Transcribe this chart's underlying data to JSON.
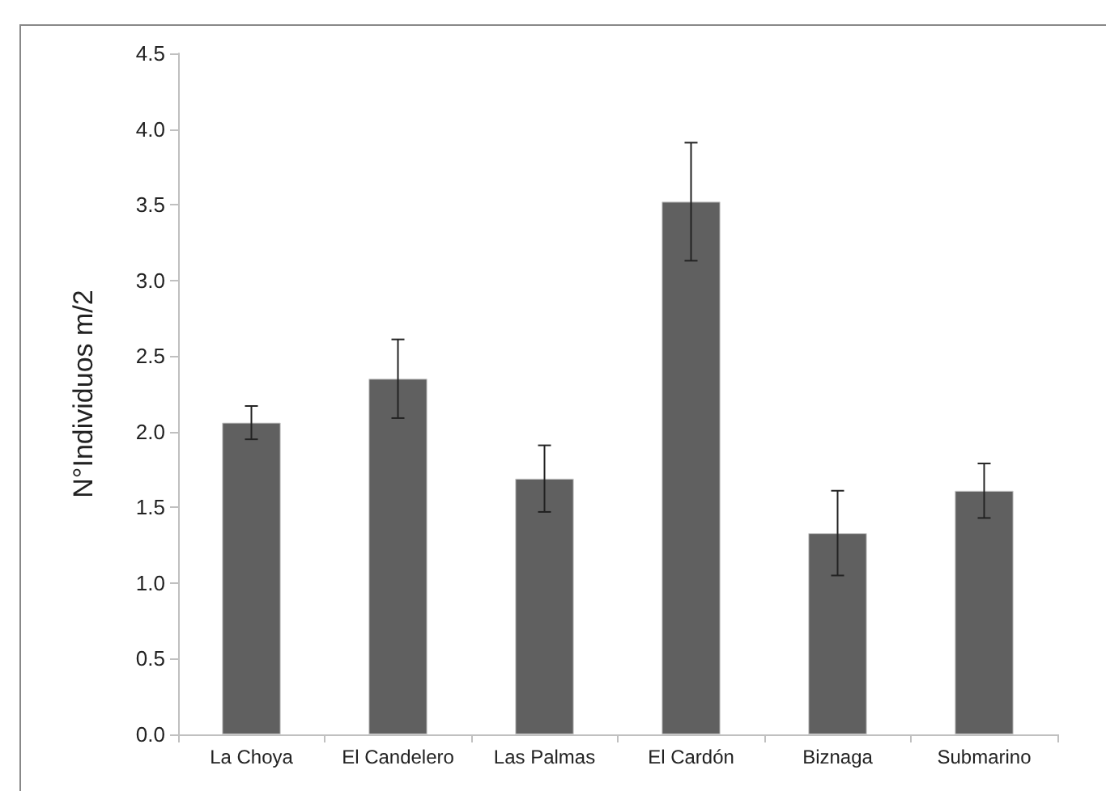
{
  "chart_data": {
    "type": "bar",
    "ylabel": "N°Individuos m/2",
    "categories": [
      "La Choya",
      "El Candelero",
      "Las Palmas",
      "El Cardón",
      "Biznaga",
      "Submarino"
    ],
    "values": [
      2.06,
      2.35,
      1.69,
      3.52,
      1.33,
      1.61
    ],
    "errors": [
      0.11,
      0.26,
      0.22,
      0.39,
      0.28,
      0.18
    ],
    "color": "#606060",
    "ylim": [
      0,
      4.5
    ],
    "yticks": [
      {
        "value": 0,
        "label": "0.0"
      },
      0.5,
      {
        "value": 1,
        "label": "1.0"
      },
      1.5,
      {
        "value": 2,
        "label": "2.0"
      },
      2.5,
      {
        "value": 3,
        "label": "3.0"
      },
      3.5,
      {
        "value": 4,
        "label": "4.0"
      },
      4.5
    ],
    "grid": false
  }
}
